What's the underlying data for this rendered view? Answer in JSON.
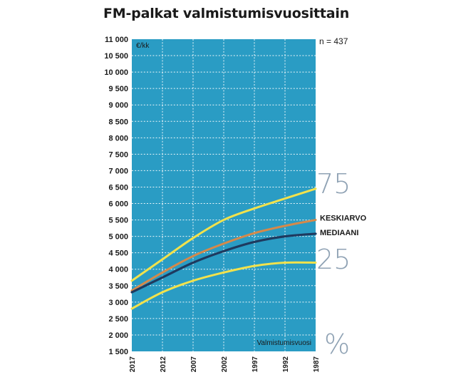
{
  "title": "FM-palkat valmistumisvuosittain",
  "colors": {
    "background": "#2a9cc4",
    "grid": "#ffffff",
    "p75": "#f2e24c",
    "keskiarvo": "#d5894a",
    "mediaani": "#1e3a5f",
    "p25": "#f2e24c",
    "percentile_text": "#8fa2b4"
  },
  "chart_data": {
    "type": "line",
    "title": "FM-palkat valmistumisvuosittain",
    "ylabel": "€/kk",
    "xlabel": "Valmistumisvuosi",
    "n_label": "n = 437",
    "percentile_labels": {
      "high": "75",
      "low": "25",
      "unit": "%"
    },
    "x": [
      2017,
      2012,
      2007,
      2002,
      1997,
      1992,
      1987
    ],
    "x_ticks": [
      "2017",
      "2012",
      "2007",
      "2002",
      "1997",
      "1992",
      "1987"
    ],
    "ylim": [
      1500,
      11000
    ],
    "y_ticks": [
      {
        "value": 1500,
        "label": "1 500"
      },
      {
        "value": 2000,
        "label": "2 000"
      },
      {
        "value": 2500,
        "label": "2 500"
      },
      {
        "value": 3000,
        "label": "3 000"
      },
      {
        "value": 3500,
        "label": "3 500"
      },
      {
        "value": 4000,
        "label": "4 000"
      },
      {
        "value": 4500,
        "label": "4 500"
      },
      {
        "value": 5000,
        "label": "5 000"
      },
      {
        "value": 5500,
        "label": "5 500"
      },
      {
        "value": 6000,
        "label": "6 000"
      },
      {
        "value": 6500,
        "label": "6 500"
      },
      {
        "value": 7000,
        "label": "7 000"
      },
      {
        "value": 7500,
        "label": "7 500"
      },
      {
        "value": 8000,
        "label": "8 000"
      },
      {
        "value": 8500,
        "label": "8 500"
      },
      {
        "value": 9000,
        "label": "9 000"
      },
      {
        "value": 9500,
        "label": "9 500"
      },
      {
        "value": 10000,
        "label": "10 000"
      },
      {
        "value": 10500,
        "label": "10 500"
      },
      {
        "value": 11000,
        "label": "11 000"
      }
    ],
    "grid": true,
    "series": [
      {
        "id": "p75",
        "name": "",
        "values": [
          3650,
          4300,
          4950,
          5500,
          5850,
          6150,
          6450
        ]
      },
      {
        "id": "keskiarvo",
        "name": "KESKIARVO",
        "values": [
          3350,
          3900,
          4400,
          4780,
          5100,
          5320,
          5500
        ]
      },
      {
        "id": "mediaani",
        "name": "MEDIAANI",
        "values": [
          3300,
          3750,
          4200,
          4550,
          4830,
          5000,
          5080
        ]
      },
      {
        "id": "p25",
        "name": "",
        "values": [
          2800,
          3300,
          3650,
          3900,
          4100,
          4200,
          4200
        ]
      }
    ]
  }
}
